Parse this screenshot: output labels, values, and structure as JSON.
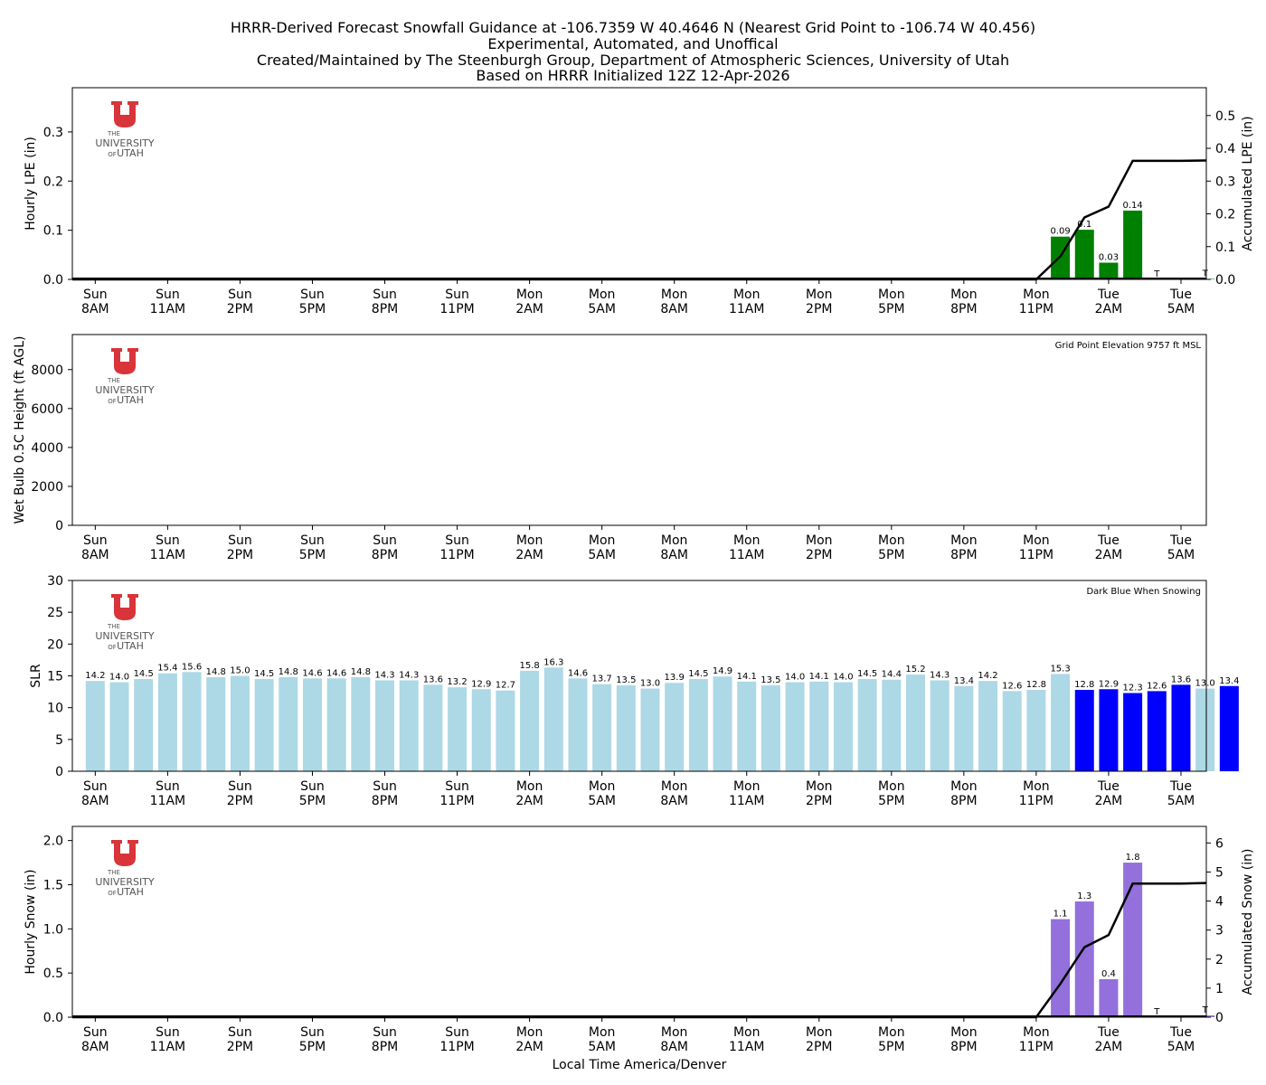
{
  "figure": {
    "title_lines": [
      "HRRR-Derived Forecast Snowfall Guidance at -106.7359 W 40.4646 N (Nearest Grid Point to -106.74 W 40.456)",
      "Experimental, Automated, and Unoffical",
      "Created/Maintained by The Steenburgh Group, Department of Atmospheric Sciences, University of Utah",
      "Based on HRRR Initialized 12Z 12-Apr-2026"
    ],
    "xlabel": "Local Time America/Denver",
    "logo": {
      "top": "THE",
      "middle": "UNIVERSITY",
      "bottom_small": "OF",
      "bottom": "UTAH"
    },
    "colors": {
      "lpe": "#008000",
      "slr_light": "#add8e6",
      "slr_dark": "#0000ff",
      "snow": "#9370db",
      "line": "#000000",
      "logo_red": "#d8343a"
    }
  },
  "chart_data": [
    {
      "type": "bar",
      "id": "lpe",
      "ylabel": "Hourly LPE (in)",
      "ylim": [
        0,
        0.39
      ],
      "yticks": [
        0.0,
        0.1,
        0.2,
        0.3
      ],
      "ytick_labels": [
        "0.0",
        "0.1",
        "0.2",
        "0.3"
      ],
      "y2label": "Accumulated LPE (in)",
      "y2lim": [
        0,
        0.585
      ],
      "y2ticks": [
        0.0,
        0.1,
        0.2,
        0.3,
        0.4,
        0.5
      ],
      "y2tick_labels": [
        "0.0",
        "0.1",
        "0.2",
        "0.3",
        "0.4",
        "0.5"
      ],
      "x_hours": [
        40,
        41,
        42,
        43,
        44,
        46
      ],
      "values": [
        0.087,
        0.101,
        0.034,
        0.14,
        0.0,
        0.001
      ],
      "labels": [
        "0.09",
        "0.1",
        "0.03",
        "0.14",
        "T",
        "T"
      ],
      "accum_hours": [
        0,
        39,
        40,
        41,
        42,
        43,
        44,
        45,
        46
      ],
      "accum_values": [
        0,
        0,
        0.07,
        0.189,
        0.222,
        0.362,
        0.362,
        0.362,
        0.363
      ]
    },
    {
      "type": "line",
      "id": "wetbulb",
      "ylabel": "Wet Bulb 0.5C Height (ft AGL)",
      "ylim": [
        0,
        9800
      ],
      "yticks": [
        0,
        2000,
        4000,
        6000,
        8000
      ],
      "ytick_labels": [
        "0",
        "2000",
        "4000",
        "6000",
        "8000"
      ],
      "annotation": "Grid Point Elevation 9757 ft MSL"
    },
    {
      "type": "bar",
      "id": "slr",
      "ylabel": "SLR",
      "ylim": [
        0,
        30
      ],
      "yticks": [
        0,
        5,
        10,
        15,
        20,
        25,
        30
      ],
      "ytick_labels": [
        "0",
        "5",
        "10",
        "15",
        "20",
        "25",
        "30"
      ],
      "annotation": "Dark Blue When Snowing",
      "values": [
        14.2,
        14.0,
        14.5,
        15.4,
        15.6,
        14.8,
        15.0,
        14.5,
        14.8,
        14.6,
        14.6,
        14.8,
        14.3,
        14.3,
        13.6,
        13.2,
        12.9,
        12.7,
        15.8,
        16.3,
        14.6,
        13.7,
        13.5,
        13.0,
        13.9,
        14.5,
        14.9,
        14.1,
        13.5,
        14.0,
        14.1,
        14.0,
        14.5,
        14.4,
        15.2,
        14.3,
        13.4,
        14.2,
        12.6,
        12.8,
        15.3,
        12.8,
        12.9,
        12.3,
        12.6,
        13.6,
        13.0,
        13.4
      ],
      "labels": [
        "14.2",
        "14.0",
        "14.5",
        "15.4",
        "15.6",
        "14.8",
        "15.0",
        "14.5",
        "14.8",
        "14.6",
        "14.6",
        "14.8",
        "14.3",
        "14.3",
        "13.6",
        "13.2",
        "12.9",
        "12.7",
        "15.8",
        "16.3",
        "14.6",
        "13.7",
        "13.5",
        "13.0",
        "13.9",
        "14.5",
        "14.9",
        "14.1",
        "13.5",
        "14.0",
        "14.1",
        "14.0",
        "14.5",
        "14.4",
        "15.2",
        "14.3",
        "13.4",
        "14.2",
        "12.6",
        "12.8",
        "15.3",
        "12.8",
        "12.9",
        "12.3",
        "12.6",
        "13.6",
        "13.0",
        "13.4"
      ],
      "snowing": [
        0,
        0,
        0,
        0,
        0,
        0,
        0,
        0,
        0,
        0,
        0,
        0,
        0,
        0,
        0,
        0,
        0,
        0,
        0,
        0,
        0,
        0,
        0,
        0,
        0,
        0,
        0,
        0,
        0,
        0,
        0,
        0,
        0,
        0,
        0,
        0,
        0,
        0,
        0,
        0,
        0,
        1,
        1,
        1,
        1,
        1,
        0,
        1
      ]
    },
    {
      "type": "bar",
      "id": "snow",
      "ylabel": "Hourly Snow (in)",
      "ylim": [
        0,
        2.16
      ],
      "yticks": [
        0.0,
        0.5,
        1.0,
        1.5,
        2.0
      ],
      "ytick_labels": [
        "0.0",
        "0.5",
        "1.0",
        "1.5",
        "2.0"
      ],
      "y2label": "Accumulated Snow (in)",
      "y2lim": [
        0,
        6.57
      ],
      "y2ticks": [
        0,
        1,
        2,
        3,
        4,
        5,
        6
      ],
      "y2tick_labels": [
        "0",
        "1",
        "2",
        "3",
        "4",
        "5",
        "6"
      ],
      "x_hours": [
        40,
        41,
        42,
        43,
        44,
        46
      ],
      "values": [
        1.11,
        1.31,
        0.43,
        1.75,
        0.0,
        0.02
      ],
      "labels": [
        "1.1",
        "1.3",
        "0.4",
        "1.8",
        "T",
        "T"
      ],
      "accum_hours": [
        0,
        39,
        40,
        41,
        42,
        43,
        44,
        45,
        46
      ],
      "accum_values": [
        0,
        0,
        1.15,
        2.41,
        2.83,
        4.6,
        4.6,
        4.6,
        4.62
      ]
    }
  ],
  "x_axis": {
    "hours": [
      0,
      3,
      6,
      9,
      12,
      15,
      18,
      21,
      24,
      27,
      30,
      33,
      36,
      39,
      42,
      45
    ],
    "tick_day": [
      "Sun",
      "Sun",
      "Sun",
      "Sun",
      "Sun",
      "Sun",
      "Mon",
      "Mon",
      "Mon",
      "Mon",
      "Mon",
      "Mon",
      "Mon",
      "Mon",
      "Tue",
      "Tue"
    ],
    "tick_time": [
      "8AM",
      "11AM",
      "2PM",
      "5PM",
      "8PM",
      "11PM",
      "2AM",
      "5AM",
      "8AM",
      "11AM",
      "2PM",
      "5PM",
      "8PM",
      "11PM",
      "2AM",
      "5AM"
    ],
    "range": [
      -0.95,
      46.05
    ]
  }
}
